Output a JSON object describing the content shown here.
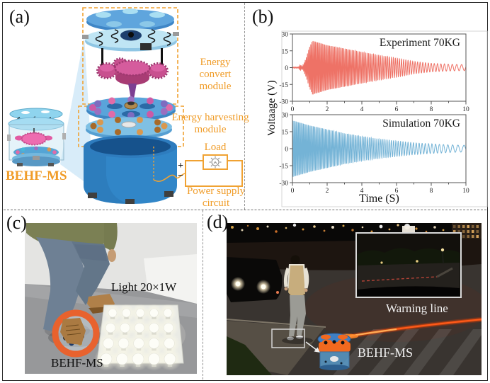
{
  "colors": {
    "accent_orange": "#f0a232",
    "experiment_wave": "#ee7266",
    "simulation_wave": "#74b3d6",
    "warning_red": "#ff5a1a"
  },
  "panels": {
    "a": {
      "label": "(a)",
      "device_label": "BEHF-MS",
      "convert_module": [
        "Energy convert",
        "module"
      ],
      "harvesting_module": [
        "Energy harvesting",
        "module"
      ],
      "load_label": "Load",
      "power_supply": [
        "Power supply",
        "circuit"
      ],
      "plus": "+",
      "minus": "−"
    },
    "b": {
      "label": "(b)"
    },
    "c": {
      "label": "(c)",
      "light_label": "Light 20×1W",
      "device_label": "BEHF-MS",
      "bulb_grid": {
        "rows": 4,
        "cols": 5,
        "total_lights": 20
      }
    },
    "d": {
      "label": "(d)",
      "warning_label": "Warning line",
      "device_label": "BEHF-MS"
    }
  },
  "chart_data": [
    {
      "type": "line",
      "title": "Experiment 70KG",
      "color": "#ee7266",
      "xlabel": "Time (S)",
      "ylabel": "Voltaage (V)",
      "xlim": [
        0,
        10
      ],
      "ylim": [
        -30,
        30
      ],
      "xticks": [
        0,
        2,
        4,
        6,
        8,
        10
      ],
      "yticks": [
        30,
        15,
        0,
        -15,
        -30
      ],
      "grid": false,
      "title_position": "top-right-inside",
      "signal": {
        "kind": "damped_oscillation",
        "envelope_t": [
          0,
          0.35,
          0.45,
          0.55,
          0.65,
          0.8,
          0.95,
          1.15,
          2,
          3,
          4,
          5,
          6,
          7,
          8,
          9,
          10
        ],
        "envelope_v": [
          0.4,
          0.5,
          2.6,
          1.0,
          3.5,
          9,
          17,
          24,
          20,
          17,
          14,
          11,
          8.5,
          5.5,
          3.8,
          3.0,
          2.6
        ],
        "freq_start_hz": 17,
        "freq_slope": 1.4,
        "freq_min_hz": 3.2
      }
    },
    {
      "type": "line",
      "title": "Simulation 70KG",
      "color": "#74b3d6",
      "xlabel": "Time (S)",
      "ylabel": "Voltaage (V)",
      "xlim": [
        0,
        10
      ],
      "ylim": [
        -30,
        30
      ],
      "xticks": [
        0,
        2,
        4,
        6,
        8,
        10
      ],
      "yticks": [
        30,
        15,
        0,
        -15,
        -30
      ],
      "grid": false,
      "title_position": "top-right-inside",
      "signal": {
        "kind": "damped_oscillation",
        "envelope_t": [
          0,
          1,
          2,
          3,
          4,
          5,
          6,
          7,
          8,
          9,
          10
        ],
        "envelope_v": [
          25,
          20.5,
          17,
          13.5,
          10.8,
          8.6,
          6.8,
          5.2,
          4.2,
          3.4,
          2.9
        ],
        "freq_start_hz": 15,
        "freq_slope": 1.25,
        "freq_min_hz": 2.6
      }
    }
  ]
}
